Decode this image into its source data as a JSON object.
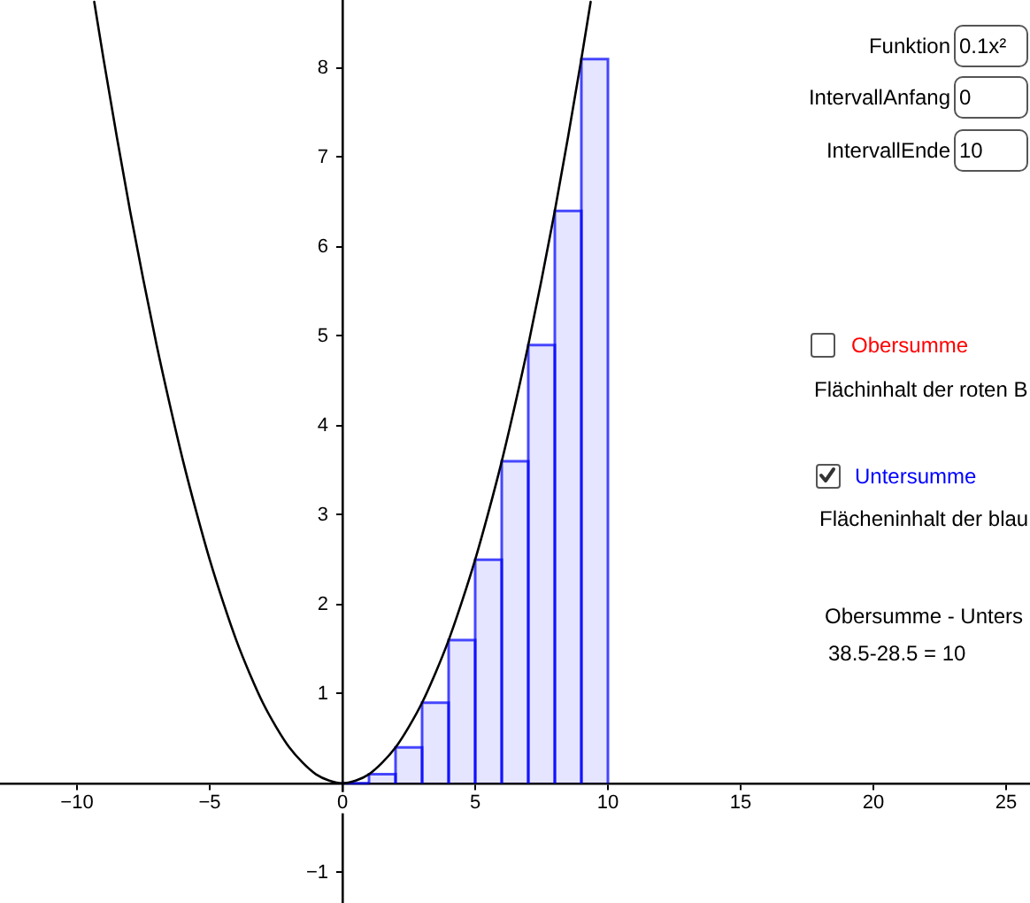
{
  "chart_data": {
    "type": "line",
    "xlim": [
      -12.9,
      25.9
    ],
    "ylim": [
      -1.34,
      8.76
    ],
    "xticks": [
      {
        "value": -10,
        "label": "−10"
      },
      {
        "value": -5,
        "label": "−5"
      },
      0,
      5,
      10,
      15,
      20,
      25
    ],
    "yticks": [
      {
        "value": -1,
        "label": "−1"
      },
      1,
      2,
      3,
      4,
      5,
      6,
      7,
      8
    ],
    "series": [
      {
        "type": "histogram",
        "color": "#0000ff",
        "bins": [
          0,
          1,
          2,
          3,
          4,
          5,
          6,
          7,
          8,
          9,
          10
        ],
        "values": [
          0,
          0.1,
          0.4,
          0.9,
          1.6,
          2.5,
          3.6,
          4.9,
          6.4,
          8.1
        ]
      },
      {
        "color": "#000000",
        "x": [
          -9.35,
          -9,
          -8.5,
          -8,
          -7.5,
          -7,
          -6.5,
          -6,
          -5.5,
          -5,
          -4.5,
          -4,
          -3.5,
          -3,
          -2.5,
          -2,
          -1.5,
          -1,
          -0.5,
          0,
          0.5,
          1,
          1.5,
          2,
          2.5,
          3,
          3.5,
          4,
          4.5,
          5,
          5.5,
          6,
          6.5,
          7,
          7.5,
          8,
          8.5,
          9,
          9.35
        ],
        "values": [
          8.74,
          8.1,
          7.23,
          6.4,
          5.63,
          4.9,
          4.23,
          3.6,
          3.03,
          2.5,
          2.03,
          1.6,
          1.23,
          0.9,
          0.63,
          0.4,
          0.23,
          0.1,
          0.03,
          0,
          0.03,
          0.1,
          0.23,
          0.4,
          0.63,
          0.9,
          1.23,
          1.6,
          2.03,
          2.5,
          3.03,
          3.6,
          4.23,
          4.9,
          5.63,
          6.4,
          7.23,
          8.1,
          8.74
        ]
      }
    ],
    "annotations": [
      "Funktion",
      "0.1x²",
      "IntervallAnfang",
      "0",
      "IntervallEnde",
      "10",
      "Obersumme",
      "Flächinhalt der roten B",
      "Untersumme",
      "Flächeninhalt der blau",
      "Obersumme - Unters",
      "38.5-28.5 = 10"
    ]
  }
}
